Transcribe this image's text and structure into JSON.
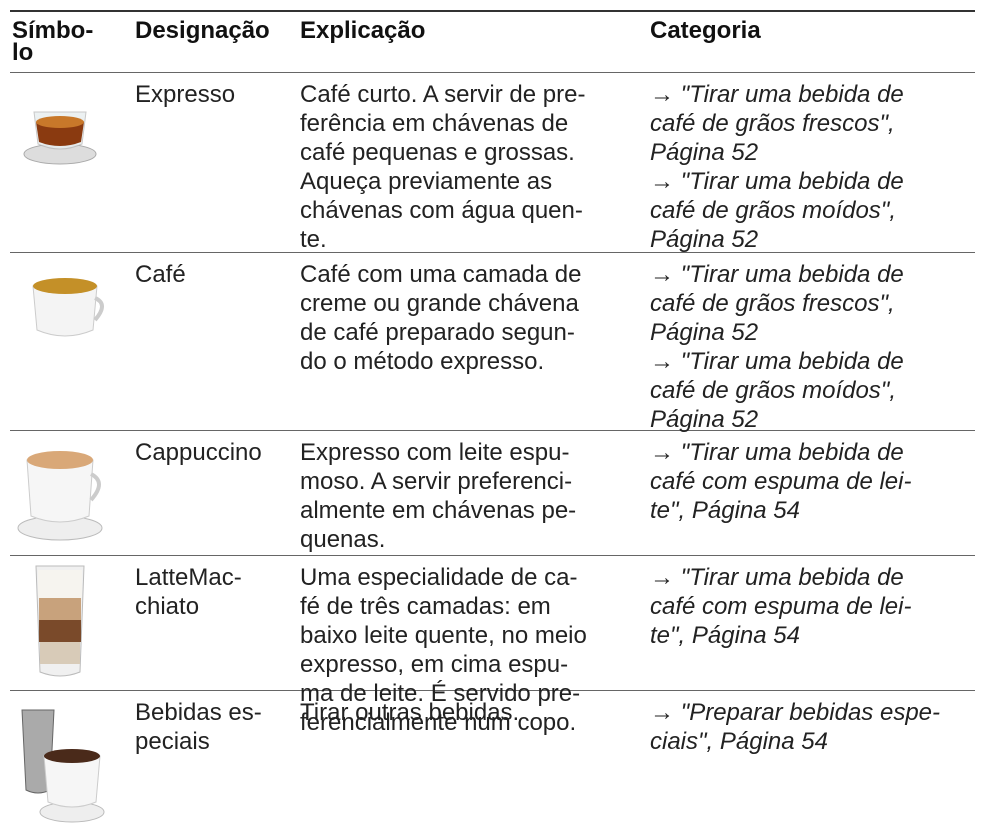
{
  "table": {
    "header": [
      [
        "Símbo-",
        "lo"
      ],
      [
        "Designação"
      ],
      [
        "Explicação"
      ],
      [
        "Categoria"
      ]
    ],
    "rows": [
      {
        "designation": [
          "Expresso"
        ],
        "explanation": [
          "Café curto. A servir de pre-",
          "ferência em chávenas de",
          "café pequenas e grossas.",
          "Aqueça previamente as",
          "chávenas com água quen-",
          "te."
        ],
        "category": [
          "→ \"Tirar uma bebida de",
          "café de grãos frescos\",",
          "Página 52",
          "→ \"Tirar uma bebida de",
          "café de grãos moídos\",",
          "Página 52"
        ]
      },
      {
        "designation": [
          "Café"
        ],
        "explanation": [
          "Café com uma camada de",
          "creme ou grande chávena",
          "de café preparado segun-",
          "do o método expresso."
        ],
        "category": [
          "→ \"Tirar uma bebida de",
          "café de grãos frescos\",",
          "Página 52",
          "→ \"Tirar uma bebida de",
          "café de grãos moídos\",",
          "Página 52"
        ]
      },
      {
        "designation": [
          "Cappuccino"
        ],
        "explanation": [
          "Expresso com leite espu-",
          "moso. A servir preferenci-",
          "almente em chávenas pe-",
          "quenas."
        ],
        "category": [
          "→ \"Tirar uma bebida de",
          "café com espuma de lei-",
          "te\", Página 54"
        ]
      },
      {
        "designation": [
          "LatteMac-",
          "chiato"
        ],
        "explanation": [
          "Uma especialidade de ca-",
          "fé de três camadas: em",
          "baixo leite quente, no meio",
          "expresso, em cima espu-",
          "ma de leite. É servido pre-",
          "ferencialmente num copo."
        ],
        "category": [
          "→ \"Tirar uma bebida de",
          "café com espuma de lei-",
          "te\", Página 54"
        ]
      },
      {
        "designation": [
          "Bebidas es-",
          "peciais"
        ],
        "explanation": [
          "Tirar outras bebidas."
        ],
        "category": [
          "→ \"Preparar bebidas espe-",
          "ciais\", Página 54"
        ]
      }
    ]
  }
}
